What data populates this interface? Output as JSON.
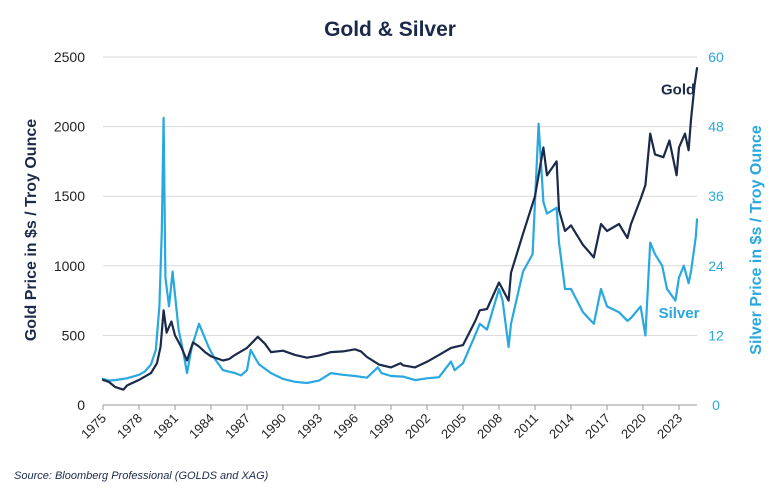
{
  "chart_data": {
    "type": "line",
    "title": "Gold & Silver",
    "ylabel_left": "Gold Price in $s / Troy Ounce",
    "ylabel_right": "Silver Price in $s / Troy Ounce",
    "ylim_left": [
      0,
      2500
    ],
    "ylim_right": [
      0,
      60
    ],
    "yticks_left": [
      "0",
      "500",
      "1000",
      "1500",
      "2000",
      "2500"
    ],
    "yticks_right": [
      "0",
      "12",
      "24",
      "36",
      "48",
      "60"
    ],
    "x_range": [
      1975,
      2024.5
    ],
    "xticks": [
      "1975",
      "1978",
      "1981",
      "1984",
      "1987",
      "1990",
      "1993",
      "1996",
      "1999",
      "2002",
      "2005",
      "2008",
      "2011",
      "2014",
      "2017",
      "2020",
      "2023"
    ],
    "grid": true,
    "colors": {
      "gold": "#1b2a4a",
      "silver": "#29a8df"
    },
    "series": [
      {
        "name": "Gold",
        "axis": "left",
        "x": [
          1975,
          1975.5,
          1976,
          1976.7,
          1977,
          1978,
          1978.8,
          1979,
          1979.5,
          1979.8,
          1980.05,
          1980.3,
          1980.7,
          1981,
          1981.5,
          1982,
          1982.5,
          1983,
          1983.5,
          1984,
          1985,
          1985.5,
          1986,
          1987,
          1987.9,
          1988.5,
          1989,
          1990,
          1991,
          1992,
          1993,
          1994,
          1995,
          1996,
          1996.5,
          1997,
          1998,
          1999,
          1999.8,
          2000,
          2001,
          2002,
          2003,
          2004,
          2005,
          2006,
          2006.4,
          2007,
          2008,
          2008.8,
          2009,
          2010,
          2011,
          2011.7,
          2012,
          2012.8,
          2013,
          2013.5,
          2014,
          2015,
          2015.9,
          2016.5,
          2017,
          2018,
          2018.7,
          2019,
          2019.8,
          2020.2,
          2020.6,
          2021,
          2021.7,
          2022.2,
          2022.8,
          2023,
          2023.5,
          2023.8,
          2024,
          2024.3,
          2024.5
        ],
        "values": [
          180,
          165,
          130,
          110,
          140,
          180,
          220,
          230,
          300,
          420,
          680,
          520,
          600,
          500,
          420,
          320,
          450,
          420,
          380,
          350,
          320,
          330,
          360,
          410,
          490,
          440,
          380,
          390,
          360,
          340,
          355,
          380,
          385,
          400,
          385,
          345,
          290,
          270,
          300,
          285,
          270,
          310,
          360,
          410,
          430,
          600,
          680,
          690,
          880,
          750,
          950,
          1230,
          1500,
          1850,
          1650,
          1750,
          1400,
          1250,
          1290,
          1150,
          1060,
          1300,
          1250,
          1300,
          1200,
          1300,
          1480,
          1580,
          1950,
          1800,
          1780,
          1900,
          1650,
          1850,
          1950,
          1830,
          2050,
          2300,
          2420
        ]
      },
      {
        "name": "Silver",
        "axis": "right",
        "x": [
          1975,
          1975.5,
          1976,
          1977,
          1978,
          1978.5,
          1979,
          1979.4,
          1979.7,
          1979.9,
          1980.05,
          1980.2,
          1980.5,
          1980.8,
          1981,
          1981.3,
          1981.7,
          1982,
          1982.4,
          1983,
          1983.4,
          1983.8,
          1984.3,
          1985,
          1986,
          1986.5,
          1987,
          1987.3,
          1988,
          1989,
          1990,
          1991,
          1992,
          1993,
          1994,
          1995,
          1996,
          1997,
          1997.9,
          1998.2,
          1999,
          2000,
          2001,
          2002,
          2003,
          2004,
          2004.3,
          2005,
          2006,
          2006.4,
          2007,
          2008,
          2008.3,
          2008.8,
          2009,
          2010,
          2010.8,
          2011.3,
          2011.7,
          2012,
          2012.8,
          2013,
          2013.5,
          2014,
          2015,
          2015.9,
          2016.5,
          2017,
          2018,
          2018.7,
          2019,
          2019.8,
          2020.2,
          2020.6,
          2021,
          2021.6,
          2022,
          2022.7,
          2023,
          2023.4,
          2023.8,
          2024,
          2024.4,
          2024.5
        ],
        "values": [
          4.5,
          4.2,
          4.3,
          4.6,
          5.2,
          5.8,
          7,
          9.5,
          17,
          30,
          49.5,
          22,
          17,
          23,
          19,
          13,
          9,
          5.5,
          10,
          14,
          12,
          10,
          8,
          6,
          5.5,
          5.1,
          6,
          9.5,
          7,
          5.5,
          4.5,
          4,
          3.8,
          4.2,
          5.5,
          5.2,
          5,
          4.7,
          6.5,
          5.5,
          5,
          4.9,
          4.3,
          4.6,
          4.8,
          7.5,
          6,
          7.2,
          12,
          14,
          13,
          20,
          18,
          10,
          14,
          23,
          26,
          48.5,
          35,
          33,
          34,
          28,
          20,
          20,
          16,
          14,
          20,
          17,
          16,
          14.5,
          15,
          17,
          12,
          28,
          26,
          24,
          20,
          18,
          22,
          24,
          21,
          23,
          29,
          32
        ]
      }
    ],
    "annotations": [
      {
        "text": "Gold",
        "series": "Gold",
        "x": 2021.5,
        "y_left": 2230
      },
      {
        "text": "Silver",
        "series": "Silver",
        "x": 2021.3,
        "y_right": 15
      }
    ]
  },
  "source": "Source: Bloomberg Professional (GOLDS and XAG)"
}
